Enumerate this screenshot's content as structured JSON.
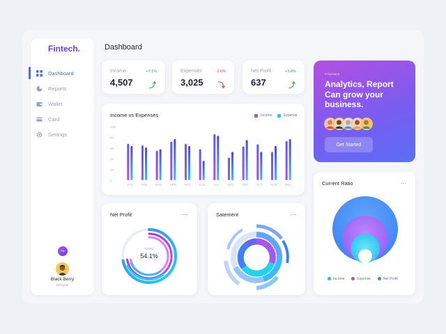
{
  "brand": "Fintech.",
  "page_title": "Dashboard",
  "sidebar": {
    "items": [
      {
        "label": "Dashboard",
        "icon": "grid-icon",
        "active": true
      },
      {
        "label": "Reports",
        "icon": "pie-chart-icon",
        "active": false
      },
      {
        "label": "Wallet",
        "icon": "wallet-icon",
        "active": false
      },
      {
        "label": "Card",
        "icon": "credit-card-icon",
        "active": false
      },
      {
        "label": "Settings",
        "icon": "gear-icon",
        "active": false
      }
    ],
    "user": {
      "name": "Black Berry",
      "role": "Designer"
    }
  },
  "stats": [
    {
      "label": "Income",
      "value": "4,507",
      "change": "+7.1%",
      "direction": "up"
    },
    {
      "label": "Expenses",
      "value": "3,025",
      "change": "-2.6%",
      "direction": "down"
    },
    {
      "label": "Net Profit",
      "value": "637",
      "change": "+5.8%",
      "direction": "up"
    }
  ],
  "promo": {
    "kicker": "FINANCE",
    "title": "Analytics, Report Can grow your business.",
    "button": "Get Started"
  },
  "income_chart": {
    "title": "Income vs Expenses",
    "legend_income": "Income",
    "legend_expense": "Expense"
  },
  "net_profit": {
    "title": "Net Profit",
    "center_label": "TOTAL",
    "center_value": "54.1%"
  },
  "statement": {
    "title": "Satement"
  },
  "current_ratio": {
    "title": "Current Ratio",
    "legend": [
      "Income",
      "Expense",
      "Net Profit"
    ]
  },
  "colors": {
    "accent": "#4b6bf5",
    "income": "#8b5cf6",
    "expense": "#38bdf8",
    "positive": "#2cb14f",
    "negative": "#e8483b"
  },
  "chart_data": {
    "type": "bar",
    "title": "Income vs Expenses",
    "categories": [
      "JAN",
      "FEB",
      "MAR",
      "APR",
      "MAY",
      "JUN",
      "JUL",
      "AUG",
      "SEP",
      "OCT",
      "NOV",
      "DEC"
    ],
    "y_ticks": [
      "10K",
      "8K",
      "6K",
      "4K",
      "2K",
      "0"
    ],
    "ylim": [
      0,
      10000
    ],
    "series": [
      {
        "name": "Income",
        "values": [
          6800,
          6500,
          5500,
          7200,
          6800,
          5800,
          8600,
          4200,
          6300,
          6700,
          5300,
          7300
        ]
      },
      {
        "name": "Expense",
        "values": [
          6400,
          6100,
          5800,
          7700,
          6400,
          3600,
          8300,
          5300,
          7500,
          5300,
          6400,
          7700
        ]
      }
    ]
  }
}
